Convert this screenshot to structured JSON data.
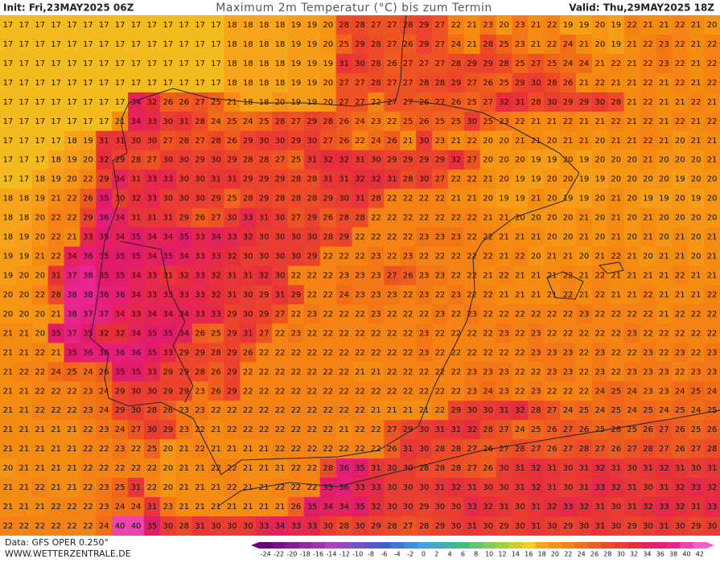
{
  "header": {
    "init": "Init: Fri,23MAY2025 06Z",
    "title": "Maximum 2m Temperatur (°C) bis zum Termin",
    "valid": "Valid: Thu,29MAY2025 18Z"
  },
  "grid": {
    "rows": [
      [
        17,
        17,
        17,
        17,
        17,
        17,
        17,
        17,
        17,
        17,
        17,
        17,
        17,
        17,
        18,
        18,
        18,
        18,
        19,
        19,
        20,
        28,
        28,
        27,
        27,
        28,
        29,
        27,
        22,
        21,
        23,
        20,
        23,
        21,
        22,
        19,
        19,
        20,
        19,
        22,
        21,
        21,
        22,
        21,
        20
      ],
      [
        17,
        17,
        17,
        17,
        17,
        17,
        17,
        17,
        17,
        17,
        17,
        17,
        17,
        17,
        18,
        18,
        18,
        18,
        19,
        19,
        20,
        25,
        29,
        28,
        27,
        26,
        29,
        27,
        24,
        21,
        28,
        25,
        23,
        21,
        22,
        24,
        21,
        20,
        19,
        21,
        22,
        23,
        22,
        21,
        22
      ],
      [
        17,
        17,
        17,
        17,
        17,
        17,
        17,
        17,
        17,
        17,
        17,
        17,
        17,
        17,
        18,
        18,
        18,
        18,
        19,
        19,
        19,
        31,
        30,
        28,
        26,
        27,
        27,
        27,
        28,
        29,
        29,
        28,
        25,
        27,
        25,
        24,
        24,
        21,
        22,
        21,
        22,
        23,
        22,
        21,
        22
      ],
      [
        17,
        17,
        17,
        17,
        17,
        17,
        17,
        17,
        17,
        17,
        17,
        17,
        17,
        17,
        18,
        18,
        18,
        18,
        19,
        19,
        20,
        27,
        27,
        28,
        27,
        27,
        28,
        28,
        29,
        27,
        26,
        25,
        29,
        30,
        28,
        26,
        21,
        22,
        21,
        21,
        22,
        21,
        22,
        21,
        22
      ],
      [
        17,
        17,
        17,
        17,
        17,
        17,
        17,
        17,
        34,
        32,
        26,
        26,
        27,
        25,
        21,
        18,
        18,
        20,
        19,
        19,
        20,
        27,
        27,
        22,
        27,
        27,
        26,
        27,
        26,
        25,
        27,
        32,
        31,
        28,
        30,
        29,
        29,
        30,
        28,
        21,
        22,
        21,
        21,
        22,
        21
      ],
      [
        17,
        17,
        17,
        17,
        17,
        17,
        17,
        21,
        34,
        33,
        30,
        31,
        28,
        24,
        25,
        24,
        25,
        28,
        27,
        29,
        28,
        26,
        24,
        23,
        22,
        25,
        26,
        25,
        25,
        30,
        25,
        23,
        22,
        21,
        21,
        22,
        21,
        21,
        22,
        21,
        22,
        21,
        22,
        21,
        22
      ],
      [
        17,
        17,
        17,
        17,
        18,
        19,
        31,
        31,
        30,
        30,
        27,
        28,
        27,
        28,
        26,
        29,
        30,
        30,
        29,
        30,
        27,
        26,
        22,
        24,
        26,
        21,
        30,
        23,
        21,
        22,
        20,
        20,
        21,
        21,
        20,
        21,
        21,
        20,
        21,
        21,
        22,
        21,
        20,
        21,
        21
      ],
      [
        17,
        17,
        17,
        18,
        19,
        20,
        32,
        29,
        28,
        27,
        30,
        30,
        29,
        30,
        29,
        28,
        28,
        27,
        25,
        31,
        32,
        32,
        31,
        30,
        29,
        29,
        29,
        29,
        32,
        27,
        20,
        20,
        20,
        19,
        19,
        20,
        19,
        20,
        20,
        20,
        21,
        20,
        20,
        20,
        21
      ],
      [
        17,
        17,
        18,
        19,
        20,
        22,
        29,
        34,
        31,
        33,
        33,
        30,
        30,
        31,
        31,
        29,
        29,
        29,
        28,
        28,
        31,
        31,
        32,
        32,
        31,
        28,
        30,
        27,
        22,
        22,
        21,
        20,
        19,
        19,
        20,
        20,
        19,
        19,
        20,
        20,
        20,
        20,
        19,
        20,
        20
      ],
      [
        18,
        18,
        19,
        21,
        22,
        26,
        35,
        30,
        32,
        33,
        30,
        30,
        30,
        29,
        25,
        28,
        29,
        28,
        28,
        28,
        29,
        30,
        31,
        28,
        22,
        22,
        22,
        22,
        21,
        21,
        20,
        19,
        19,
        21,
        20,
        19,
        19,
        20,
        21,
        20,
        19,
        19,
        20,
        19,
        20
      ],
      [
        18,
        18,
        20,
        22,
        22,
        29,
        36,
        34,
        31,
        31,
        31,
        29,
        26,
        27,
        30,
        33,
        31,
        30,
        27,
        29,
        26,
        28,
        28,
        22,
        22,
        22,
        22,
        22,
        22,
        22,
        21,
        21,
        20,
        20,
        20,
        20,
        21,
        20,
        21,
        20,
        21,
        20,
        20,
        20,
        20
      ],
      [
        18,
        19,
        20,
        22,
        21,
        33,
        35,
        34,
        35,
        34,
        34,
        35,
        33,
        34,
        33,
        32,
        30,
        30,
        30,
        30,
        28,
        29,
        22,
        22,
        22,
        22,
        23,
        23,
        23,
        22,
        22,
        21,
        21,
        21,
        20,
        20,
        21,
        20,
        21,
        20,
        21,
        20,
        21,
        20,
        21
      ],
      [
        19,
        19,
        21,
        22,
        34,
        36,
        35,
        35,
        35,
        34,
        35,
        34,
        33,
        33,
        32,
        30,
        30,
        30,
        30,
        29,
        22,
        22,
        22,
        23,
        22,
        23,
        22,
        22,
        22,
        22,
        22,
        21,
        22,
        20,
        21,
        21,
        20,
        21,
        22,
        21,
        20,
        21,
        21,
        20,
        21
      ],
      [
        19,
        20,
        20,
        31,
        37,
        38,
        35,
        35,
        34,
        33,
        31,
        32,
        33,
        32,
        31,
        31,
        32,
        30,
        22,
        22,
        22,
        23,
        23,
        23,
        27,
        26,
        23,
        23,
        22,
        22,
        21,
        22,
        21,
        21,
        21,
        22,
        21,
        22,
        21,
        21,
        21,
        21,
        22,
        21,
        21
      ],
      [
        20,
        20,
        22,
        28,
        38,
        38,
        36,
        36,
        34,
        33,
        33,
        33,
        33,
        32,
        31,
        30,
        29,
        31,
        29,
        22,
        22,
        24,
        23,
        23,
        23,
        22,
        23,
        22,
        23,
        22,
        22,
        21,
        21,
        21,
        21,
        22,
        21,
        22,
        21,
        21,
        22,
        21,
        21,
        21,
        22
      ],
      [
        20,
        20,
        20,
        21,
        38,
        37,
        37,
        34,
        33,
        34,
        34,
        34,
        33,
        33,
        29,
        30,
        29,
        27,
        22,
        23,
        22,
        22,
        22,
        23,
        22,
        22,
        22,
        23,
        22,
        23,
        22,
        22,
        22,
        22,
        22,
        22,
        23,
        22,
        22,
        22,
        22,
        21,
        22,
        22,
        22
      ],
      [
        21,
        21,
        20,
        35,
        37,
        35,
        32,
        32,
        34,
        35,
        35,
        34,
        26,
        25,
        29,
        31,
        27,
        22,
        23,
        22,
        22,
        22,
        22,
        22,
        22,
        22,
        23,
        22,
        22,
        22,
        22,
        23,
        22,
        23,
        22,
        22,
        22,
        22,
        22,
        23,
        22,
        22,
        22,
        22,
        22
      ],
      [
        21,
        21,
        22,
        21,
        35,
        36,
        36,
        36,
        36,
        35,
        33,
        29,
        29,
        28,
        29,
        26,
        22,
        22,
        22,
        22,
        22,
        22,
        22,
        22,
        22,
        22,
        23,
        22,
        22,
        22,
        22,
        22,
        22,
        23,
        23,
        23,
        22,
        23,
        22,
        22,
        23,
        22,
        23,
        22,
        23
      ],
      [
        21,
        22,
        22,
        24,
        25,
        24,
        26,
        35,
        35,
        33,
        29,
        29,
        28,
        26,
        29,
        22,
        22,
        22,
        22,
        22,
        22,
        22,
        21,
        21,
        22,
        22,
        22,
        22,
        22,
        23,
        23,
        23,
        22,
        22,
        23,
        23,
        22,
        23,
        22,
        23,
        23,
        23,
        22,
        23,
        23
      ],
      [
        21,
        21,
        22,
        22,
        22,
        23,
        24,
        29,
        30,
        30,
        29,
        29,
        23,
        26,
        29,
        22,
        22,
        22,
        22,
        22,
        22,
        22,
        22,
        22,
        22,
        22,
        22,
        22,
        22,
        23,
        24,
        23,
        22,
        23,
        22,
        22,
        22,
        24,
        25,
        24,
        23,
        23,
        24,
        25,
        24
      ],
      [
        21,
        21,
        22,
        22,
        22,
        23,
        24,
        29,
        30,
        28,
        26,
        23,
        23,
        22,
        22,
        22,
        22,
        22,
        22,
        22,
        22,
        22,
        22,
        21,
        21,
        21,
        21,
        22,
        29,
        30,
        30,
        31,
        32,
        28,
        27,
        24,
        25,
        24,
        25,
        24,
        25,
        24,
        25,
        24,
        25
      ],
      [
        21,
        21,
        21,
        21,
        21,
        22,
        23,
        24,
        27,
        30,
        29,
        23,
        22,
        21,
        22,
        22,
        22,
        22,
        22,
        22,
        22,
        21,
        22,
        22,
        27,
        29,
        30,
        31,
        31,
        32,
        28,
        27,
        24,
        25,
        26,
        27,
        26,
        25,
        26,
        25,
        26,
        27,
        26,
        25,
        26
      ],
      [
        21,
        21,
        21,
        21,
        21,
        22,
        22,
        23,
        22,
        25,
        20,
        21,
        22,
        21,
        21,
        21,
        21,
        22,
        22,
        22,
        22,
        22,
        22,
        22,
        26,
        31,
        30,
        28,
        28,
        27,
        26,
        27,
        28,
        27,
        26,
        27,
        28,
        27,
        26,
        27,
        28,
        27,
        26,
        27,
        28
      ],
      [
        20,
        21,
        21,
        21,
        21,
        22,
        22,
        22,
        22,
        22,
        20,
        21,
        21,
        22,
        22,
        21,
        21,
        21,
        22,
        22,
        28,
        36,
        35,
        31,
        30,
        30,
        28,
        28,
        28,
        27,
        26,
        30,
        31,
        32,
        31,
        30,
        31,
        32,
        31,
        30,
        31,
        32,
        31,
        30,
        31
      ],
      [
        21,
        21,
        22,
        21,
        21,
        22,
        23,
        25,
        31,
        22,
        20,
        21,
        21,
        21,
        22,
        21,
        21,
        22,
        22,
        22,
        35,
        36,
        33,
        33,
        30,
        30,
        30,
        31,
        32,
        31,
        30,
        30,
        31,
        32,
        31,
        30,
        31,
        33,
        32,
        31,
        30,
        31,
        32,
        33,
        32
      ],
      [
        21,
        21,
        21,
        22,
        22,
        22,
        23,
        24,
        24,
        31,
        23,
        21,
        21,
        21,
        21,
        21,
        21,
        21,
        26,
        35,
        34,
        34,
        35,
        32,
        30,
        30,
        29,
        30,
        30,
        33,
        32,
        31,
        30,
        31,
        32,
        33,
        32,
        31,
        30,
        31,
        32,
        33,
        32,
        31,
        33
      ],
      [
        22,
        22,
        22,
        22,
        22,
        22,
        24,
        40,
        40,
        35,
        30,
        28,
        31,
        30,
        30,
        30,
        33,
        34,
        33,
        33,
        30,
        28,
        30,
        29,
        28,
        27,
        28,
        29,
        30,
        31,
        30,
        29,
        30,
        31,
        30,
        29,
        30,
        31,
        30,
        29,
        30,
        31,
        30,
        29,
        30
      ]
    ]
  },
  "colorbar": {
    "ticks": [
      -24,
      -22,
      -20,
      -18,
      -16,
      -14,
      -12,
      -10,
      -8,
      -6,
      -4,
      -2,
      0,
      2,
      4,
      6,
      8,
      10,
      12,
      14,
      16,
      18,
      20,
      22,
      24,
      26,
      28,
      30,
      32,
      34,
      36,
      38,
      40,
      42
    ]
  },
  "footer": {
    "source": "Data: GFS OPER 0.250°",
    "site": "WWW.WETTERZENTRALE.DE"
  }
}
